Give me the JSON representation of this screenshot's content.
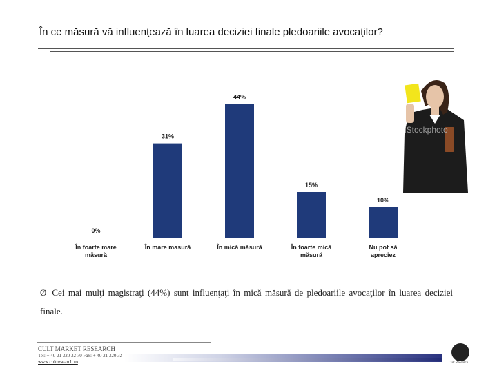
{
  "slide": {
    "title": "În ce măsură vă influenţează în luarea deciziei finale pledoariile avocaţilor?",
    "bullet_arrow": "Ø",
    "bullet_text": "Cei mai mulţi magistraţi (44%) sunt influenţaţi în mică măsură de pledoariile avocaţilor în luarea deciziei finale."
  },
  "chart_data": {
    "type": "bar",
    "categories": [
      "În foarte mare măsură",
      "În mare masură",
      "În mică măsură",
      "În foarte mică măsură",
      "Nu pot să apreciez"
    ],
    "values": [
      0,
      31,
      44,
      15,
      10
    ],
    "data_labels": [
      "0%",
      "31%",
      "44%",
      "15%",
      "10%"
    ],
    "ylim": [
      0,
      50
    ],
    "grid": false,
    "bar_color": "#1f3a7a"
  },
  "photo": {
    "watermark": "iStockphoto"
  },
  "footer": {
    "company": "CULT MARKET RESEARCH",
    "contact": "Tel: + 40 21 320 32 70  Fax: + 40 21 320 32 74",
    "website": "www.cultresearch.ro",
    "logo_text": "Cult Research"
  }
}
